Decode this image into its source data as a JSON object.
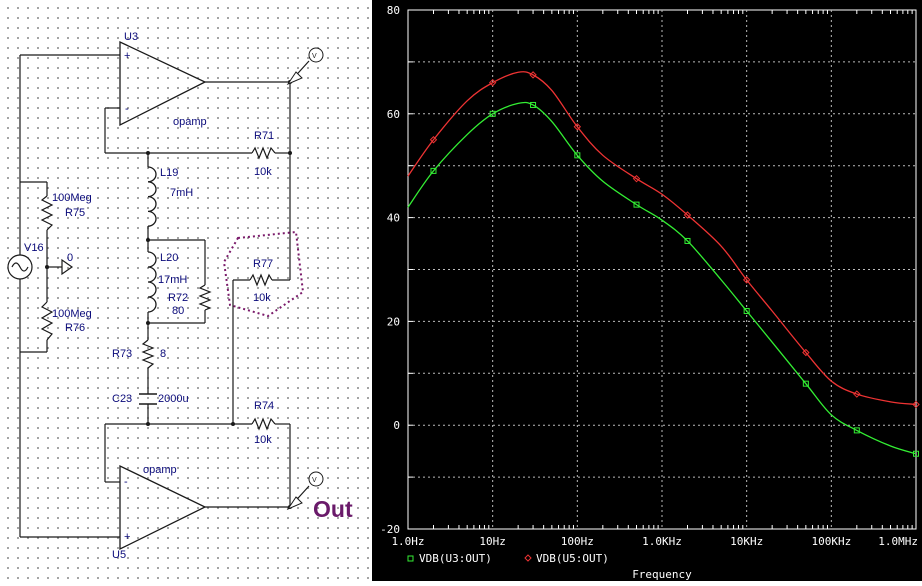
{
  "schematic": {
    "opamp_top": {
      "ref": "U3",
      "model": "opamp"
    },
    "opamp_bottom": {
      "ref": "U5",
      "model": "opamp"
    },
    "source": {
      "ref": "V16",
      "node": "0"
    },
    "parts": [
      {
        "ref": "R75",
        "value": "100Meg"
      },
      {
        "ref": "R76",
        "value": "100Meg"
      },
      {
        "ref": "L19",
        "value": "7mH"
      },
      {
        "ref": "L20",
        "value": "17mH"
      },
      {
        "ref": "R72",
        "value": "80"
      },
      {
        "ref": "R73",
        "value": "8"
      },
      {
        "ref": "C23",
        "value": "2000u"
      },
      {
        "ref": "R71",
        "value": "10k"
      },
      {
        "ref": "R77",
        "value": "10k"
      },
      {
        "ref": "R74",
        "value": "10k"
      }
    ],
    "probe_label": "Out",
    "plus_sign": "+",
    "minus_sign": "-",
    "probe_text": "V"
  },
  "chart_data": {
    "type": "line",
    "xscale": "log",
    "xlim": [
      1,
      1000000
    ],
    "ylim": [
      -20,
      80
    ],
    "grid": true,
    "x_tick_labels": [
      "1.0Hz",
      "10Hz",
      "100Hz",
      "1.0KHz",
      "10KHz",
      "100KHz",
      "1.0MHz"
    ],
    "y_tick_labels": [
      "80",
      "60",
      "40",
      "20",
      "0",
      "-20"
    ],
    "xlabel": "Frequency",
    "legend_position": "bottom-left",
    "series": [
      {
        "name": "VDB(U3:OUT)",
        "color": "#33ee33",
        "marker": "square",
        "x": [
          1,
          2,
          5,
          10,
          20,
          30,
          50,
          100,
          200,
          500,
          1000,
          2000,
          5000,
          10000,
          20000,
          50000,
          100000,
          200000,
          500000,
          1000000
        ],
        "y": [
          42,
          49,
          56,
          60,
          62,
          61.7,
          58.5,
          52,
          47,
          42.5,
          39.5,
          35.5,
          28,
          22,
          16,
          8,
          2,
          -1,
          -4,
          -5.5
        ]
      },
      {
        "name": "VDB(U5:OUT)",
        "color": "#ee3333",
        "marker": "diamond",
        "x": [
          1,
          2,
          5,
          10,
          20,
          30,
          50,
          100,
          200,
          500,
          1000,
          2000,
          5000,
          10000,
          20000,
          50000,
          100000,
          200000,
          500000,
          1000000
        ],
        "y": [
          48,
          55,
          62.5,
          66,
          68,
          67.5,
          64.5,
          57.5,
          52,
          47.5,
          44.5,
          40.5,
          34.5,
          28,
          22,
          14,
          8.5,
          6,
          4.5,
          4
        ]
      }
    ]
  }
}
